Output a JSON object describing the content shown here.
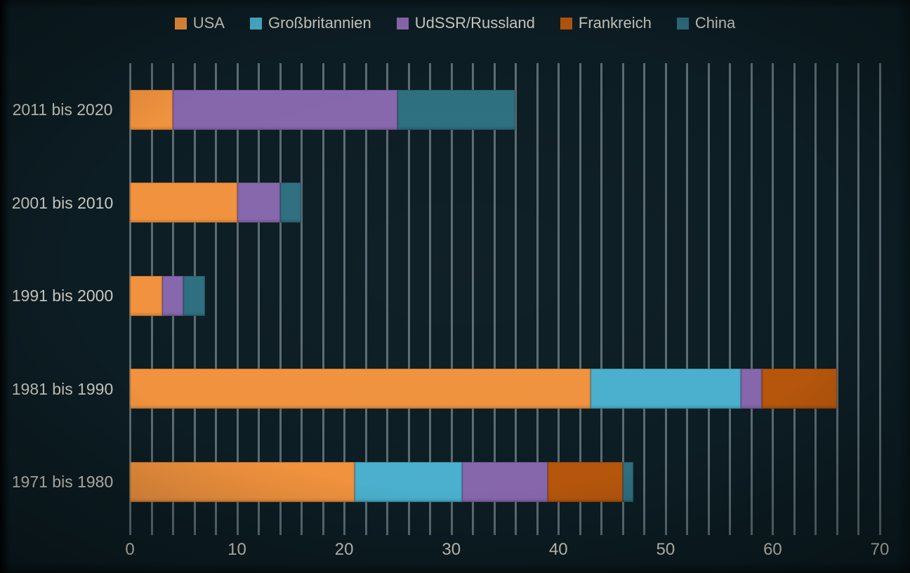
{
  "colors": {
    "background": "#0c1d23",
    "grid": "#5c6c72",
    "text": "#cbc9bf"
  },
  "legend": {
    "position": "top",
    "items": [
      "USA",
      "Großbritannien",
      "UdSSR/Russland",
      "Frankreich",
      "China"
    ]
  },
  "chart_data": {
    "type": "bar",
    "orientation": "horizontal",
    "stacked": true,
    "title": "",
    "xlabel": "",
    "ylabel": "",
    "categories": [
      "2011 bis 2020",
      "2001 bis 2010",
      "1991 bis 2000",
      "1981 bis 1990",
      "1971 bis 1980"
    ],
    "series": [
      {
        "name": "USA",
        "color": "#f0923e",
        "values": [
          4,
          10,
          3,
          43,
          21
        ]
      },
      {
        "name": "Großbritannien",
        "color": "#4ab0cd",
        "values": [
          0,
          0,
          0,
          14,
          10
        ]
      },
      {
        "name": "UdSSR/Russland",
        "color": "#8767ac",
        "values": [
          21,
          4,
          2,
          2,
          8
        ]
      },
      {
        "name": "Frankreich",
        "color": "#b5560c",
        "values": [
          0,
          0,
          0,
          7,
          7
        ]
      },
      {
        "name": "China",
        "color": "#2e6f80",
        "values": [
          11,
          2,
          2,
          0,
          1
        ]
      }
    ],
    "totals": [
      36,
      16,
      7,
      66,
      47
    ],
    "xlim": [
      0,
      70
    ],
    "x_tick_labels": [
      "0",
      "10",
      "20",
      "30",
      "40",
      "50",
      "60",
      "70"
    ],
    "x_tick_values": [
      0,
      10,
      20,
      30,
      40,
      50,
      60,
      70
    ],
    "gridline_step": 2,
    "grid": true,
    "legend_position": "top"
  }
}
